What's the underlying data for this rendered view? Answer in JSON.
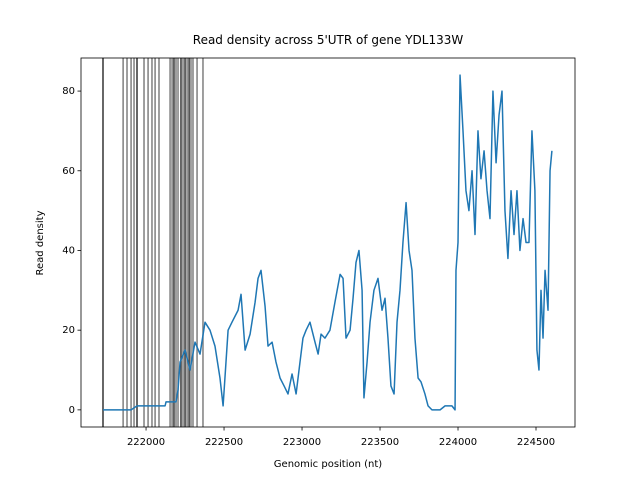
{
  "chart_data": {
    "type": "line",
    "title": "Read density across 5'UTR of gene YDL133W",
    "xlabel": "Genomic position (nt)",
    "ylabel": "Read density",
    "xlim": [
      221583,
      224750
    ],
    "ylim": [
      -4.3,
      88.3
    ],
    "xticks": [
      222000,
      222500,
      223000,
      223500,
      224000,
      224500
    ],
    "yticks": [
      0,
      20,
      40,
      60,
      80
    ],
    "vlines": [
      221724,
      221724,
      221853,
      221878,
      221904,
      221923,
      221942,
      221942,
      221987,
      222013,
      222038,
      222058,
      222083,
      222154,
      222167,
      222179,
      222179,
      222192,
      222205,
      222224,
      222224,
      222237,
      222250,
      222250,
      222263,
      222276,
      222276,
      222288,
      222301,
      222327,
      222365
    ],
    "vline_color": "#000000",
    "series": [
      {
        "name": "Read density",
        "color": "#1f77b4",
        "x": [
          221724,
          221821,
          221904,
          221942,
          222122,
          222128,
          222192,
          222205,
          222218,
          222250,
          222282,
          222314,
          222346,
          222378,
          222410,
          222442,
          222474,
          222494,
          222526,
          222551,
          222590,
          222609,
          222635,
          222667,
          222699,
          222718,
          222737,
          222763,
          222782,
          222808,
          222833,
          222859,
          222885,
          222910,
          222936,
          222962,
          222987,
          223006,
          223026,
          223051,
          223083,
          223103,
          223122,
          223147,
          223179,
          223211,
          223244,
          223263,
          223282,
          223308,
          223327,
          223346,
          223365,
          223385,
          223397,
          223417,
          223436,
          223461,
          223487,
          223513,
          223532,
          223551,
          223570,
          223590,
          223609,
          223628,
          223647,
          223667,
          223686,
          223705,
          223724,
          223744,
          223763,
          223788,
          223808,
          223833,
          223885,
          223917,
          223961,
          223981,
          223987,
          224000,
          224013,
          224032,
          224051,
          224070,
          224090,
          224109,
          224128,
          224147,
          224167,
          224186,
          224205,
          224224,
          224244,
          224263,
          224282,
          224301,
          224320,
          224340,
          224359,
          224378,
          224397,
          224417,
          224436,
          224455,
          224474,
          224493,
          224506,
          224519,
          224532,
          224545,
          224558,
          224577,
          224590,
          224602
        ],
        "values": [
          0,
          0,
          0,
          1,
          1,
          2,
          2,
          5,
          12,
          15,
          10,
          17,
          14,
          22,
          20,
          16,
          8,
          1,
          20,
          22,
          25,
          29,
          15,
          19,
          27,
          33,
          35,
          26,
          16,
          17,
          12,
          8,
          6,
          4,
          9,
          4,
          12,
          18,
          20,
          22,
          17,
          14,
          19,
          18,
          20,
          27,
          34,
          33,
          18,
          20,
          28,
          37,
          40,
          30,
          3,
          12,
          22,
          30,
          33,
          25,
          28,
          18,
          6,
          4,
          22,
          30,
          42,
          52,
          40,
          35,
          18,
          8,
          7,
          4,
          1,
          0,
          0,
          1,
          1,
          0,
          35,
          42,
          84,
          70,
          55,
          50,
          60,
          44,
          70,
          58,
          65,
          55,
          48,
          80,
          62,
          74,
          80,
          50,
          38,
          55,
          44,
          55,
          40,
          48,
          42,
          42,
          70,
          55,
          15,
          10,
          30,
          18,
          35,
          25,
          60,
          65
        ]
      }
    ]
  }
}
